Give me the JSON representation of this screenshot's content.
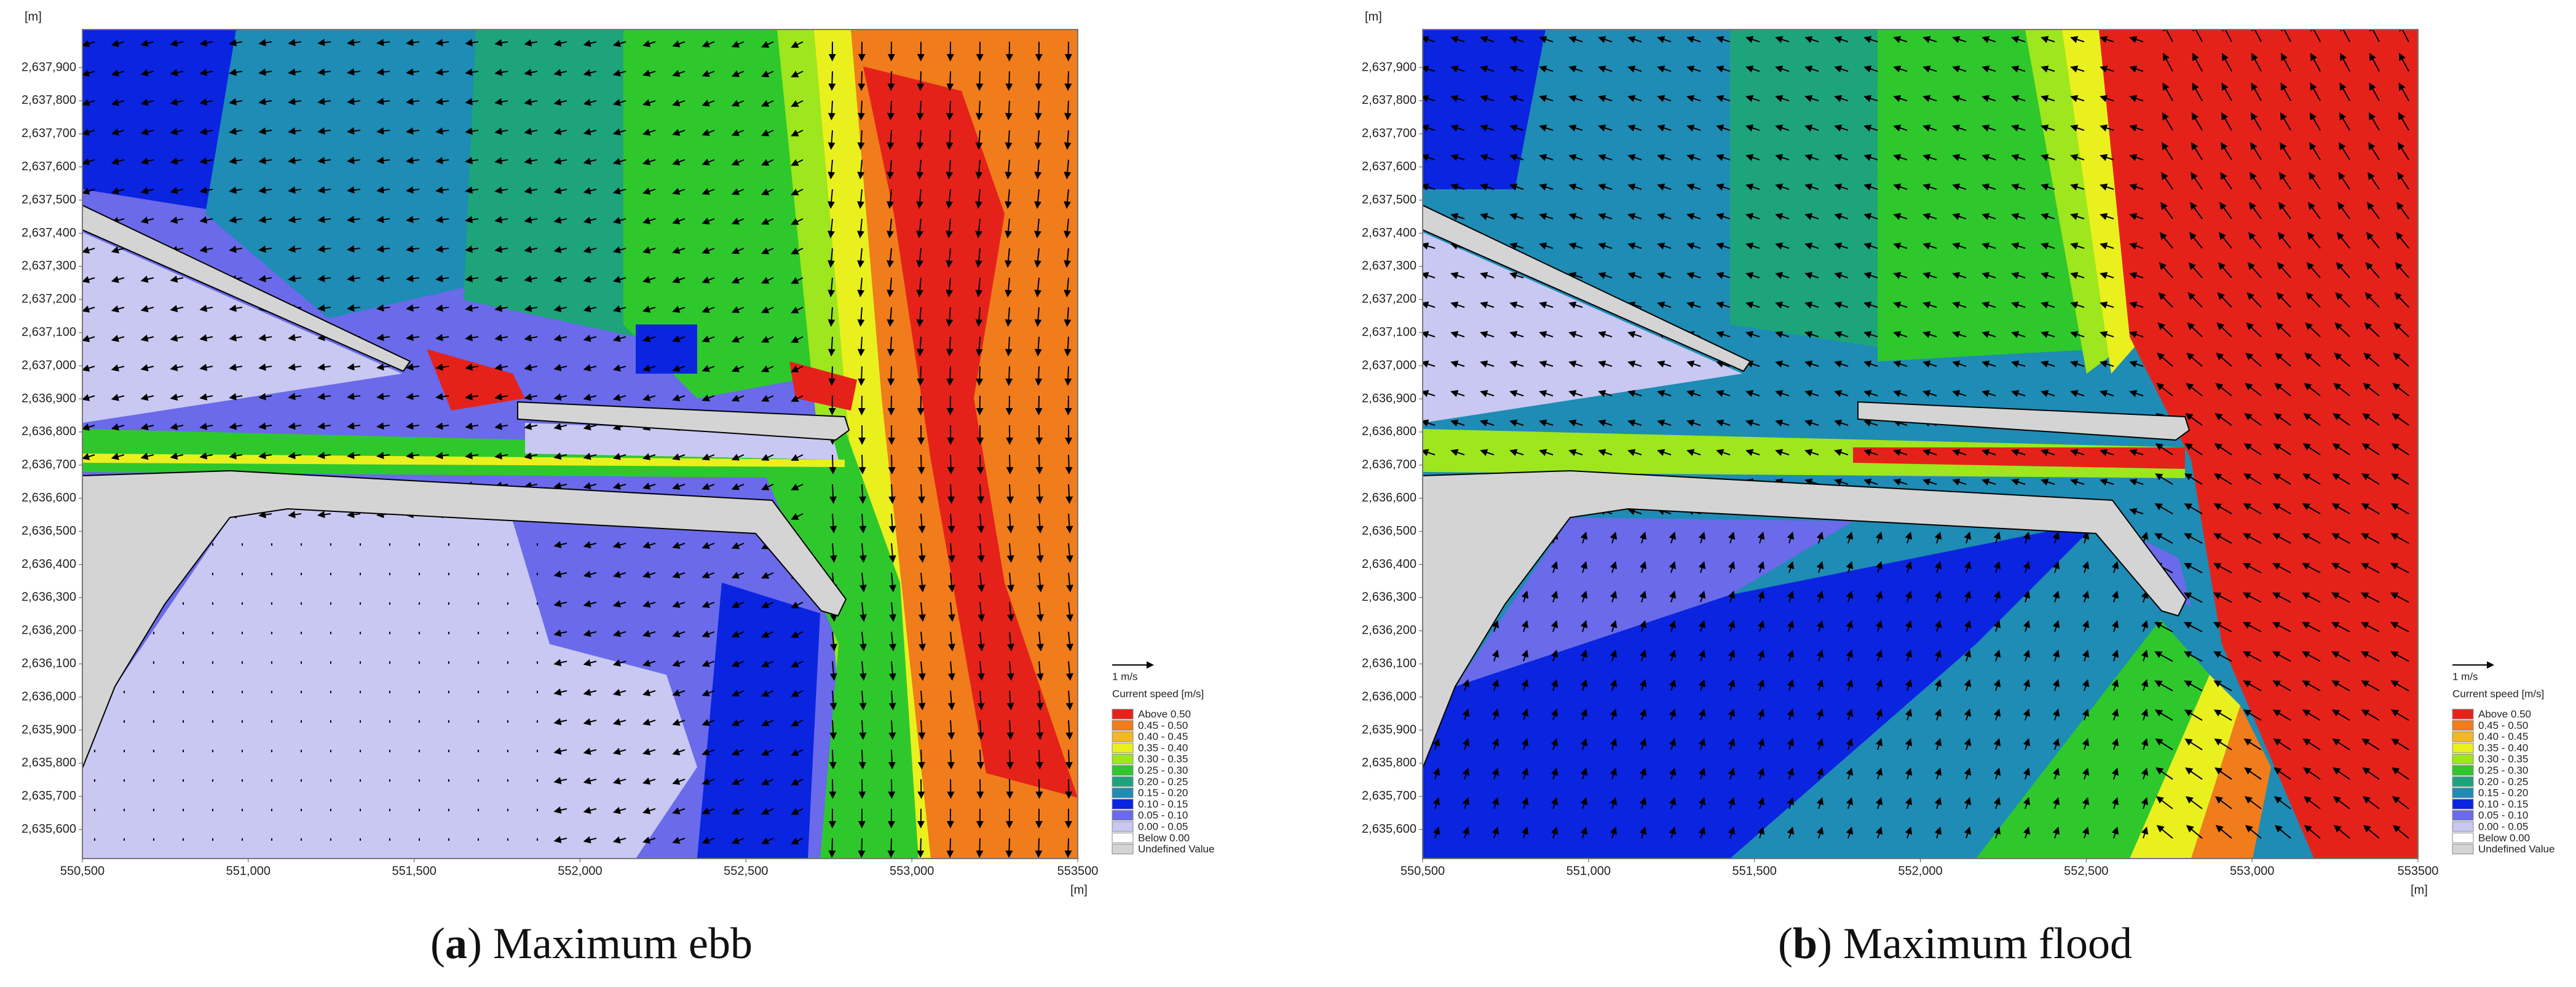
{
  "axes": {
    "y_unit": "[m]",
    "x_unit": "[m]",
    "yticks": [
      "2,637,900",
      "2,637,800",
      "2,637,700",
      "2,637,600",
      "2,637,500",
      "2,637,400",
      "2,637,300",
      "2,637,200",
      "2,637,100",
      "2,637,000",
      "2,636,900",
      "2,636,800",
      "2,636,700",
      "2,636,600",
      "2,636,500",
      "2,636,400",
      "2,636,300",
      "2,636,200",
      "2,636,100",
      "2,636,000",
      "2,635,900",
      "2,635,800",
      "2,635,700",
      "2,635,600"
    ],
    "xticks": [
      "550,500",
      "551,000",
      "551,500",
      "552,000",
      "552,500",
      "553,000",
      "553500"
    ]
  },
  "legend": {
    "scale_label": "1 m/s",
    "title": "Current speed [m/s]",
    "entries": [
      {
        "label": "Above 0.50",
        "color": "#e5221a"
      },
      {
        "label": "0.45 - 0.50",
        "color": "#f07c1c"
      },
      {
        "label": "0.40 - 0.45",
        "color": "#f5b81e"
      },
      {
        "label": "0.35 - 0.40",
        "color": "#eaf01e"
      },
      {
        "label": "0.30 - 0.35",
        "color": "#9ee61e"
      },
      {
        "label": "0.25 - 0.30",
        "color": "#2ec82c"
      },
      {
        "label": "0.20 - 0.25",
        "color": "#1ea47a"
      },
      {
        "label": "0.15 - 0.20",
        "color": "#1e8cb4"
      },
      {
        "label": "0.10 - 0.15",
        "color": "#0a24e0"
      },
      {
        "label": "0.05 - 0.10",
        "color": "#6a6aea"
      },
      {
        "label": "0.00 - 0.05",
        "color": "#c8c8f2"
      },
      {
        "label": "Below 0.00",
        "color": "#ffffff"
      },
      {
        "label": "Undefined Value",
        "color": "#d4d4d4"
      }
    ]
  },
  "panels": [
    {
      "open": "(",
      "label": "a",
      "rest": ") Maximum ebb"
    },
    {
      "open": "(",
      "label": "b",
      "rest": ") Maximum flood"
    }
  ]
}
